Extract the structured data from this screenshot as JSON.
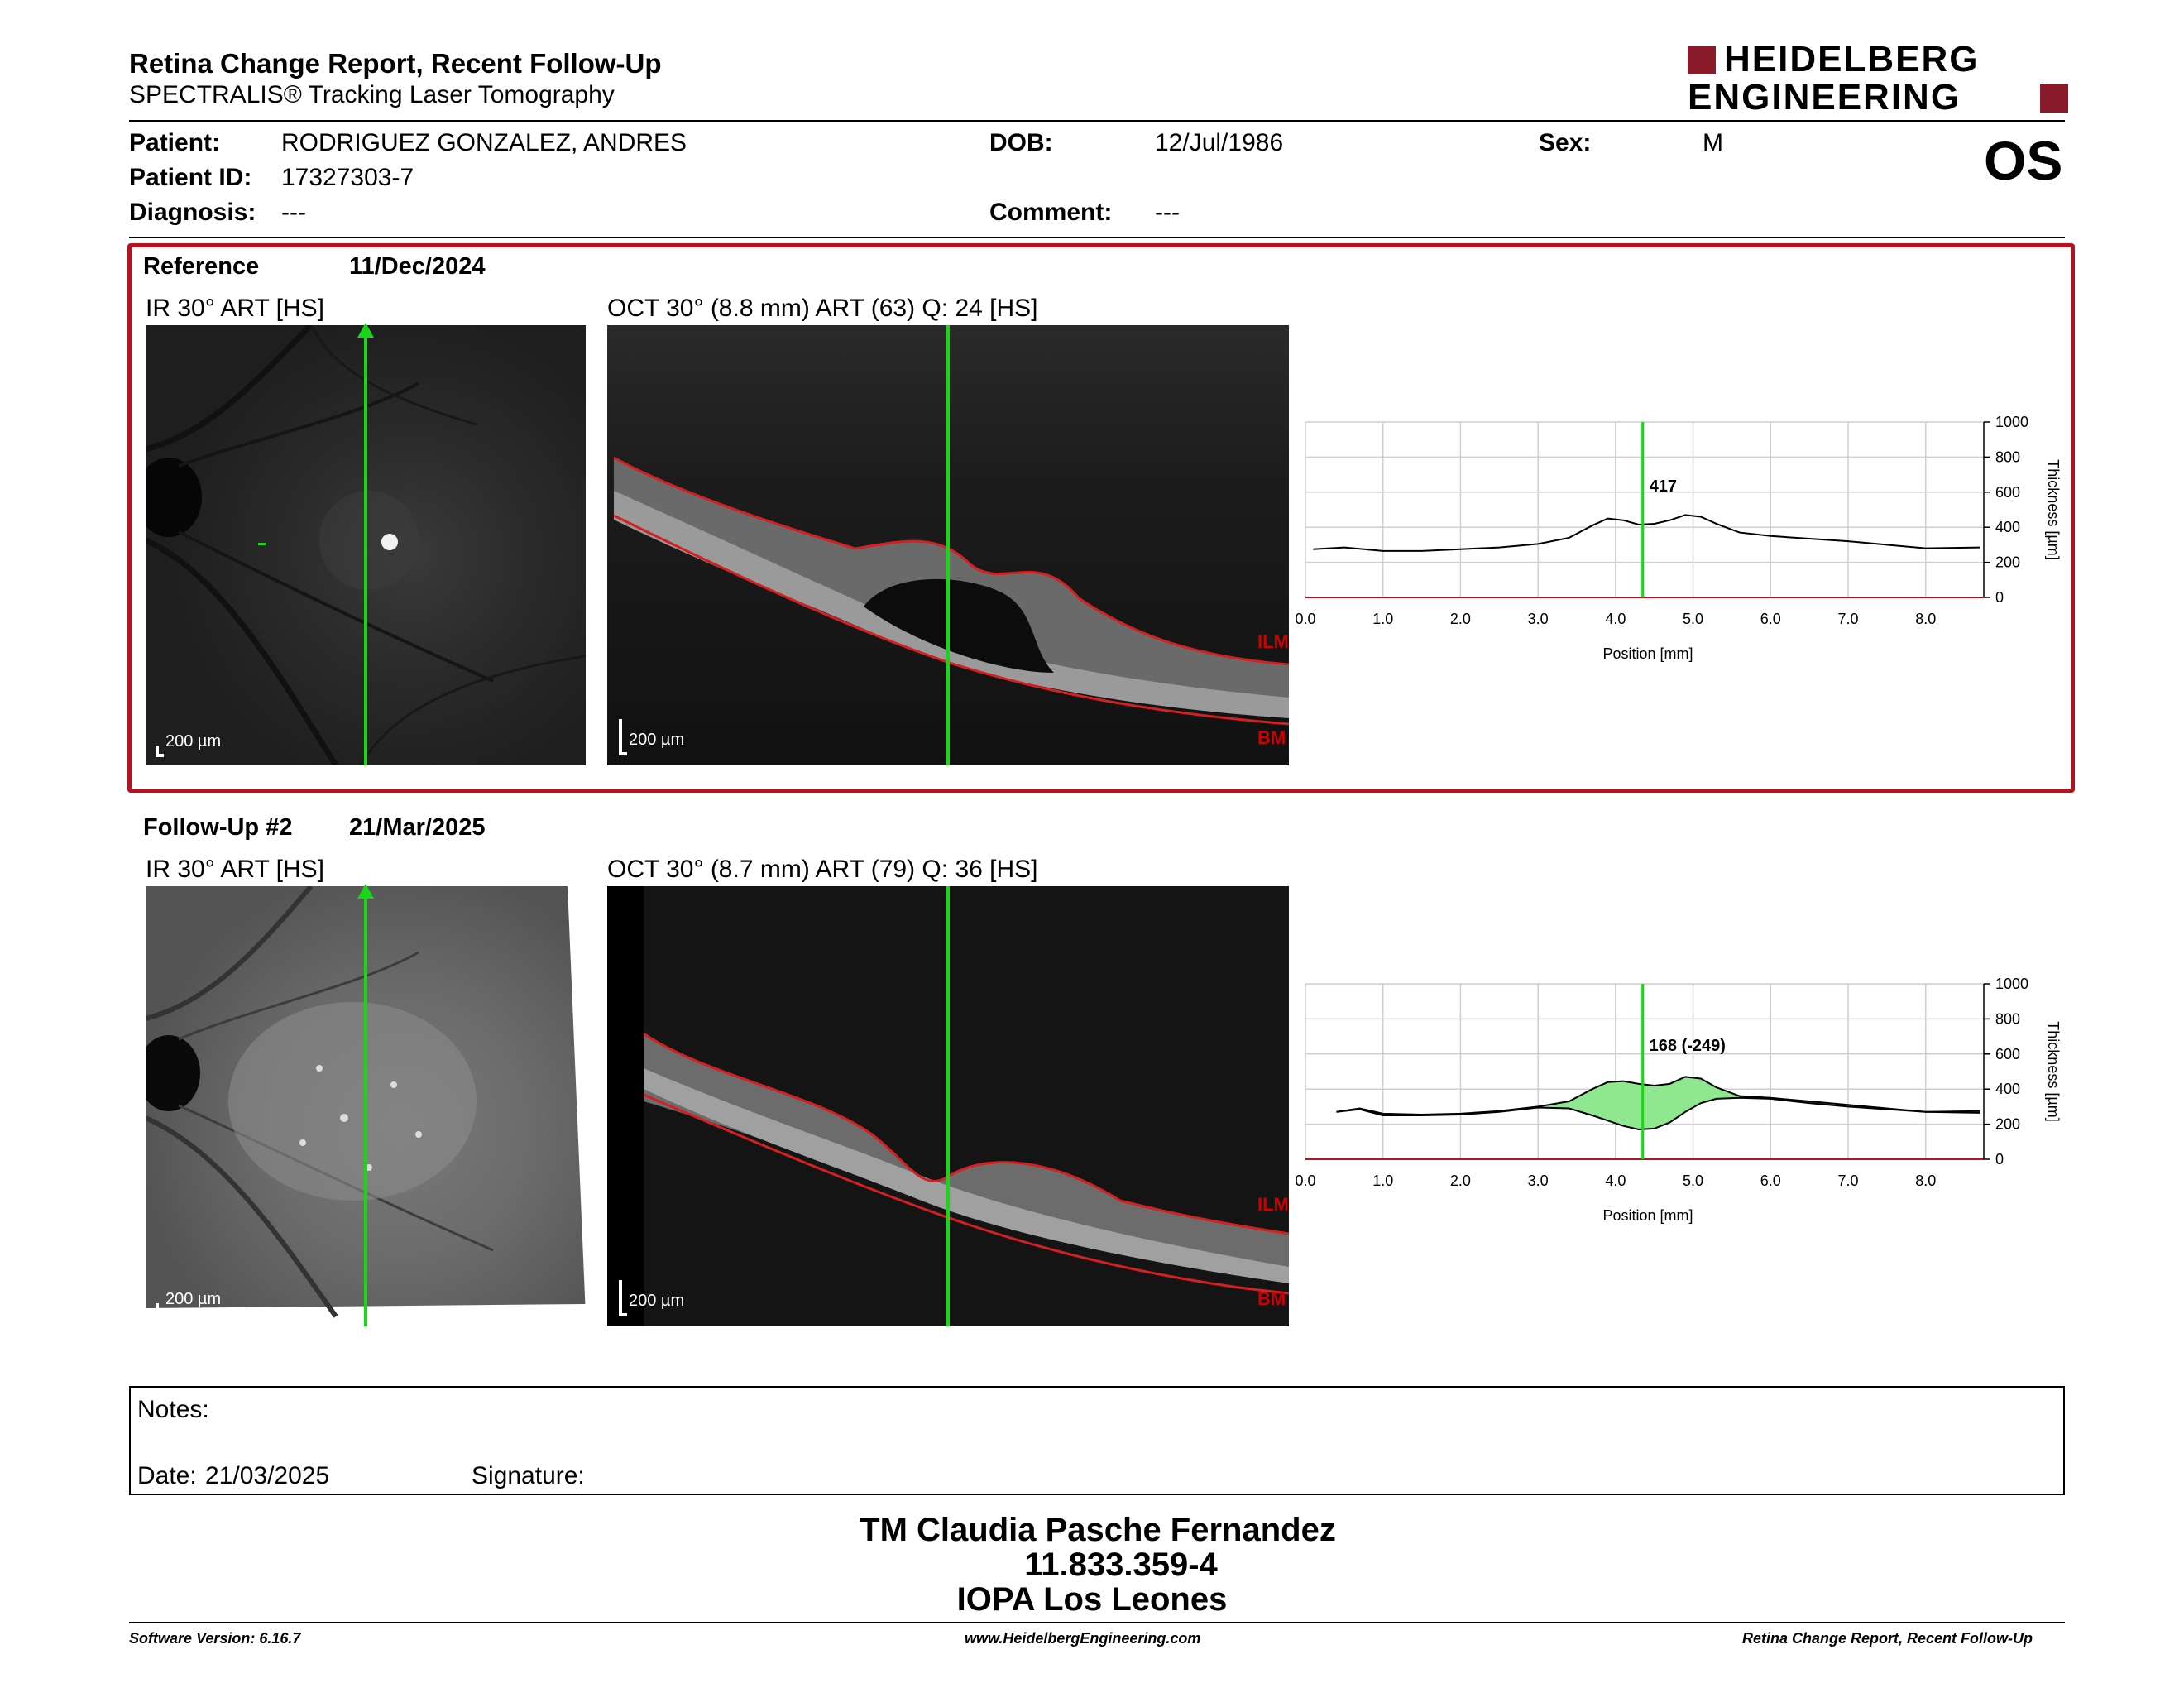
{
  "header": {
    "title": "Retina Change Report, Recent Follow-Up",
    "subtitle": "SPECTRALIS® Tracking Laser Tomography",
    "logo_line1": "HEIDELBERG",
    "logo_line2": "ENGINEERING",
    "eye": "OS"
  },
  "patient": {
    "patient_label": "Patient:",
    "patient_value": "RODRIGUEZ GONZALEZ, ANDRES",
    "id_label": "Patient ID:",
    "id_value": "17327303-7",
    "diagnosis_label": "Diagnosis:",
    "diagnosis_value": "---",
    "dob_label": "DOB:",
    "dob_value": "12/Jul/1986",
    "comment_label": "Comment:",
    "comment_value": "---",
    "sex_label": "Sex:",
    "sex_value": "M"
  },
  "reference": {
    "label": "Reference",
    "date": "11/Dec/2024",
    "ir_title": "IR 30° ART [HS]",
    "oct_title": "OCT 30° (8.8 mm) ART (63) Q: 24 [HS]",
    "scale_ir": "200 µm",
    "scale_oct": "200 µm",
    "ilm": "ILM",
    "bm": "BM"
  },
  "followup": {
    "label": "Follow-Up #2",
    "date": "21/Mar/2025",
    "ir_title": "IR 30° ART [HS]",
    "oct_title": "OCT 30° (8.7 mm) ART (79) Q: 36 [HS]",
    "scale_ir": "200 µm",
    "scale_oct": "200 µm",
    "ilm": "ILM",
    "bm": "BM"
  },
  "chart_data": [
    {
      "type": "line",
      "xlabel": "Position [mm]",
      "ylabel": "Thickness [µm]",
      "xlim": [
        0,
        8.75
      ],
      "ylim": [
        0,
        1000
      ],
      "x_ticks": [
        "0.0",
        "1.0",
        "2.0",
        "3.0",
        "4.0",
        "5.0",
        "6.0",
        "7.0",
        "8.0"
      ],
      "y_ticks": [
        "0",
        "200",
        "400",
        "600",
        "800",
        "1000"
      ],
      "grid": true,
      "marker_x": 4.35,
      "marker_label": "417",
      "series": [
        {
          "x": [
            0.1,
            0.5,
            1.0,
            1.5,
            2.0,
            2.5,
            3.0,
            3.4,
            3.7,
            3.9,
            4.1,
            4.3,
            4.5,
            4.7,
            4.9,
            5.1,
            5.3,
            5.6,
            6.0,
            6.5,
            7.0,
            7.5,
            8.0,
            8.7
          ],
          "y": [
            275,
            285,
            265,
            265,
            275,
            285,
            305,
            340,
            410,
            450,
            440,
            415,
            420,
            440,
            470,
            460,
            420,
            370,
            350,
            335,
            320,
            300,
            280,
            285
          ]
        }
      ]
    },
    {
      "type": "area",
      "xlabel": "Position [mm]",
      "ylabel": "Thickness [µm]",
      "xlim": [
        0,
        8.75
      ],
      "ylim": [
        0,
        1000
      ],
      "x_ticks": [
        "0.0",
        "1.0",
        "2.0",
        "3.0",
        "4.0",
        "5.0",
        "6.0",
        "7.0",
        "8.0"
      ],
      "y_ticks": [
        "0",
        "200",
        "400",
        "600",
        "800",
        "1000"
      ],
      "grid": true,
      "marker_x": 4.35,
      "marker_label": "168 (-249)",
      "series": [
        {
          "x": [
            0.4,
            0.7,
            1.0,
            1.5,
            2.0,
            2.5,
            3.0,
            3.4,
            3.7,
            3.9,
            4.1,
            4.3,
            4.5,
            4.7,
            4.9,
            5.1,
            5.3,
            5.6,
            6.0,
            6.5,
            7.0,
            7.5,
            8.0,
            8.7
          ],
          "y": [
            270,
            290,
            260,
            255,
            260,
            275,
            300,
            330,
            400,
            440,
            445,
            430,
            420,
            430,
            470,
            460,
            410,
            360,
            350,
            330,
            310,
            290,
            270,
            265
          ]
        },
        {
          "x": [
            0.4,
            0.7,
            1.0,
            1.5,
            2.0,
            2.5,
            3.0,
            3.4,
            3.7,
            3.9,
            4.1,
            4.3,
            4.5,
            4.7,
            4.9,
            5.1,
            5.3,
            5.6,
            6.0,
            6.5,
            7.0,
            7.5,
            8.0,
            8.7
          ],
          "y": [
            270,
            285,
            250,
            250,
            255,
            270,
            295,
            290,
            250,
            220,
            190,
            170,
            175,
            210,
            270,
            320,
            345,
            350,
            345,
            320,
            300,
            285,
            270,
            275
          ]
        }
      ]
    }
  ],
  "notes": {
    "label": "Notes:",
    "date_label": "Date:",
    "date_value": "21/03/2025",
    "signature_label": "Signature:"
  },
  "stamp": {
    "line1": "TM Claudia Pasche Fernandez",
    "line2": "11.833.359-4",
    "line3": "IOPA Los Leones"
  },
  "footer": {
    "software": "Software Version: 6.16.7",
    "website": "www.HeidelbergEngineering.com",
    "report": "Retina Change Report, Recent Follow-Up"
  },
  "colors": {
    "accent": "#b3121e",
    "marker": "#19d619",
    "layer_line": "#d42020",
    "diff_fill": "#8fe88f"
  }
}
